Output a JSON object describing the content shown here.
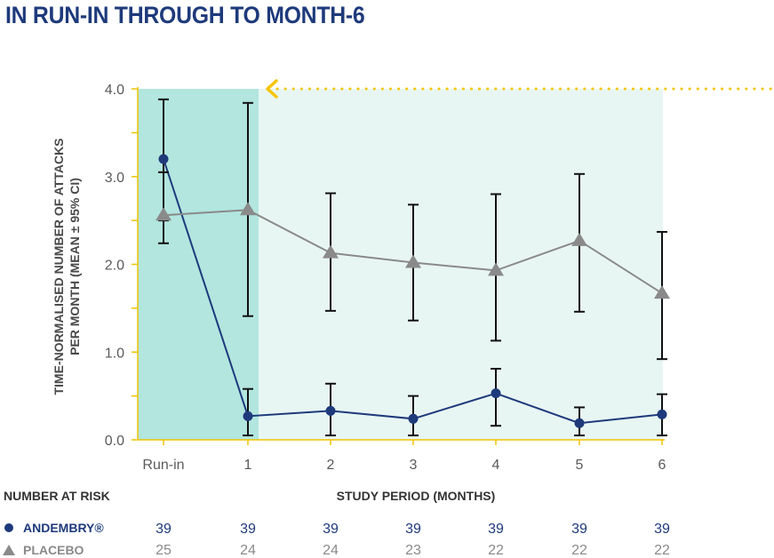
{
  "title": "IN RUN-IN THROUGH TO MONTH-6",
  "chart_data": {
    "type": "line",
    "categories": [
      "Run-in",
      "1",
      "2",
      "3",
      "4",
      "5",
      "6"
    ],
    "xlabel": "STUDY PERIOD (MONTHS)",
    "ylabel_line1": "TIME-NORMALISED NUMBER OF ATTACKS",
    "ylabel_line2": "PER MONTH (MEAN ± 95% CI)",
    "ylim": [
      0,
      4.0
    ],
    "yticks": [
      "0.0",
      "1.0",
      "2.0",
      "3.0",
      "4.0"
    ],
    "series": [
      {
        "name": "ANDEMBRY®",
        "color": "#1e3a7b",
        "marker": "circle",
        "values": [
          3.2,
          0.27,
          0.33,
          0.24,
          0.53,
          0.19,
          0.29
        ],
        "ci_low": [
          2.5,
          0.05,
          0.05,
          0.05,
          0.16,
          0.05,
          0.05
        ],
        "ci_high": [
          3.88,
          0.58,
          0.64,
          0.5,
          0.81,
          0.37,
          0.52
        ]
      },
      {
        "name": "PLACEBO",
        "color": "#8a8a8a",
        "marker": "triangle",
        "values": [
          2.56,
          2.62,
          2.13,
          2.02,
          1.93,
          2.27,
          1.67
        ],
        "ci_low": [
          2.24,
          1.41,
          1.47,
          1.36,
          1.13,
          1.46,
          0.92
        ],
        "ci_high": [
          3.05,
          3.84,
          2.81,
          2.68,
          2.8,
          3.03,
          2.37
        ]
      }
    ],
    "highlight_color_runin": "#b2e6df",
    "highlight_color_treatment": "#e8f6f3",
    "arrow_color": "#f5c400"
  },
  "risk_table": {
    "heading": "NUMBER AT RISK",
    "rows": [
      {
        "label": "ANDEMBRY®",
        "values": [
          "39",
          "39",
          "39",
          "39",
          "39",
          "39",
          "39"
        ]
      },
      {
        "label": "PLACEBO",
        "values": [
          "25",
          "24",
          "24",
          "23",
          "22",
          "22",
          "22"
        ]
      }
    ]
  }
}
